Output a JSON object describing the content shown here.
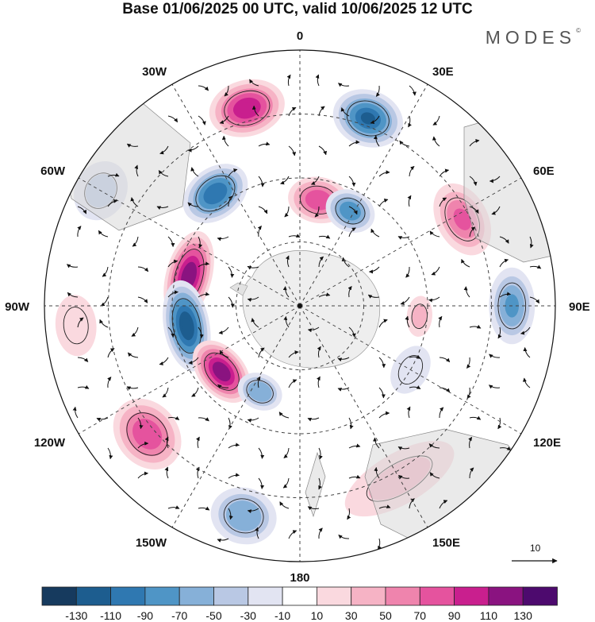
{
  "title": "Base 01/06/2025 00 UTC, valid 10/06/2025 12 UTC",
  "brand": {
    "text": "MODES",
    "mark": "©"
  },
  "longitude_labels": [
    {
      "key": "0",
      "text": "0"
    },
    {
      "key": "30E",
      "text": "30E"
    },
    {
      "key": "60E",
      "text": "60E"
    },
    {
      "key": "90E",
      "text": "90E"
    },
    {
      "key": "120E",
      "text": "120E"
    },
    {
      "key": "150E",
      "text": "150E"
    },
    {
      "key": "180",
      "text": "180"
    },
    {
      "key": "150W",
      "text": "150W"
    },
    {
      "key": "120W",
      "text": "120W"
    },
    {
      "key": "90W",
      "text": "90W"
    },
    {
      "key": "60W",
      "text": "60W"
    },
    {
      "key": "30W",
      "text": "30W"
    }
  ],
  "reference_vector": {
    "value": "10",
    "icon": "arrow-right-icon"
  },
  "colorbar": {
    "ticks": [
      "-130",
      "-110",
      "-90",
      "-70",
      "-50",
      "-30",
      "-10",
      "10",
      "30",
      "50",
      "70",
      "90",
      "110",
      "130"
    ],
    "colors": [
      "#163a5e",
      "#1d5d8f",
      "#2f78b1",
      "#4f95c6",
      "#86b0d8",
      "#b9c8e4",
      "#e2e4f2",
      "#ffffff",
      "#fad9df",
      "#f6b3c5",
      "#ef84ad",
      "#e5539e",
      "#c91f8e",
      "#8a1380",
      "#4d0a6e"
    ]
  },
  "anomaly_cells": [
    {
      "lon": -15,
      "r": 0.8,
      "value": 95,
      "rx": 0.15,
      "ry": 0.11
    },
    {
      "lon": 20,
      "r": 0.78,
      "value": -110,
      "rx": 0.14,
      "ry": 0.11
    },
    {
      "lon": -37,
      "r": 0.55,
      "value": -95,
      "rx": 0.14,
      "ry": 0.1
    },
    {
      "lon": 10,
      "r": 0.42,
      "value": 80,
      "rx": 0.12,
      "ry": 0.09
    },
    {
      "lon": 28,
      "r": 0.42,
      "value": -75,
      "rx": 0.1,
      "ry": 0.08
    },
    {
      "lon": 62,
      "r": 0.72,
      "value": 70,
      "rx": 0.15,
      "ry": 0.1
    },
    {
      "lon": 90,
      "r": 0.83,
      "value": -70,
      "rx": 0.15,
      "ry": 0.09
    },
    {
      "lon": 95,
      "r": 0.47,
      "value": 30,
      "rx": 0.08,
      "ry": 0.05
    },
    {
      "lon": -75,
      "r": 0.45,
      "value": 125,
      "rx": 0.18,
      "ry": 0.09
    },
    {
      "lon": -100,
      "r": 0.45,
      "value": -125,
      "rx": 0.18,
      "ry": 0.09
    },
    {
      "lon": -130,
      "r": 0.4,
      "value": 115,
      "rx": 0.14,
      "ry": 0.09
    },
    {
      "lon": -155,
      "r": 0.37,
      "value": -65,
      "rx": 0.09,
      "ry": 0.07
    },
    {
      "lon": -130,
      "r": 0.78,
      "value": 75,
      "rx": 0.15,
      "ry": 0.12
    },
    {
      "lon": -165,
      "r": 0.85,
      "value": -55,
      "rx": 0.13,
      "ry": 0.11
    },
    {
      "lon": 150,
      "r": 0.78,
      "value": 30,
      "rx": 0.24,
      "ry": 0.1
    },
    {
      "lon": 120,
      "r": 0.5,
      "value": -20,
      "rx": 0.1,
      "ry": 0.07
    },
    {
      "lon": -60,
      "r": 0.9,
      "value": -30,
      "rx": 0.12,
      "ry": 0.1
    },
    {
      "lon": -95,
      "r": 0.88,
      "value": 20,
      "rx": 0.12,
      "ry": 0.08
    }
  ]
}
